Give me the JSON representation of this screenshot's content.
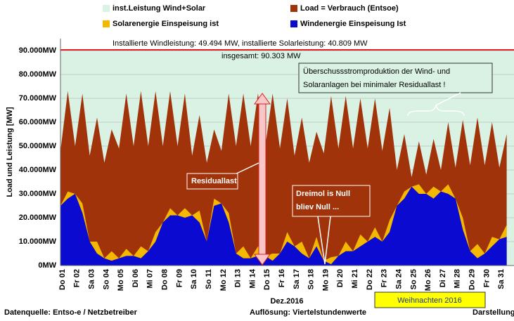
{
  "chart_data": {
    "type": "area",
    "y_label": "Load und Leistung [MW]",
    "x_label": "Dez.2016",
    "ylim": [
      0,
      95000
    ],
    "yticks": [
      {
        "value": 0,
        "label": "0MW"
      },
      {
        "value": 10000,
        "label": "10.000MW"
      },
      {
        "value": 20000,
        "label": "20.000MW"
      },
      {
        "value": 30000,
        "label": "30.000MW"
      },
      {
        "value": 40000,
        "label": "40.000MW"
      },
      {
        "value": 50000,
        "label": "50.000MW"
      },
      {
        "value": 60000,
        "label": "60.000MW"
      },
      {
        "value": 70000,
        "label": "70.000MW"
      },
      {
        "value": 80000,
        "label": "80.000MW"
      },
      {
        "value": 90000,
        "label": "90.000MW"
      }
    ],
    "categories": [
      "Do 01",
      null,
      "Fr 02",
      null,
      "Sa 03",
      null,
      "So 04",
      null,
      "Mo 05",
      null,
      "Di 06",
      null,
      "Mi 07",
      null,
      "Do 08",
      null,
      "Fr 09",
      null,
      "Sa 10",
      null,
      "So 11",
      null,
      "Mo 12",
      null,
      "Di 13",
      null,
      "Mi 14",
      null,
      "Do 15",
      null,
      "Fr 16",
      null,
      "Sa 17",
      null,
      "So 18",
      null,
      "Mo 19",
      null,
      "Di 20",
      null,
      "Mi 21",
      null,
      "Do 22",
      null,
      "Fr 23",
      null,
      "Sa 24",
      null,
      "So 25",
      null,
      "Mo 26",
      null,
      "Di 27",
      null,
      "Mi 28",
      null,
      "Do 29",
      null,
      "Fr 30",
      null,
      "Sa 31",
      null
    ],
    "capacity": {
      "name": "inst.Leistung Wind+Solar",
      "color": "#d9f2e4",
      "line_color": "#e02020",
      "value": 90303
    },
    "series": [
      {
        "name": "Load =  Verbrauch (Entsoe)",
        "color": "#a0330a",
        "values": [
          48000,
          73000,
          50000,
          72000,
          46000,
          62000,
          43000,
          57000,
          49000,
          72000,
          50000,
          73000,
          50000,
          73000,
          50000,
          73000,
          50000,
          72000,
          46000,
          63000,
          43000,
          57000,
          48000,
          72000,
          50000,
          72000,
          50000,
          72000,
          50000,
          72000,
          49000,
          70000,
          46000,
          62000,
          43000,
          56000,
          47000,
          71000,
          49000,
          71000,
          49000,
          70000,
          49000,
          70000,
          48000,
          66000,
          40000,
          55000,
          37000,
          52000,
          38000,
          53000,
          40000,
          60000,
          41000,
          61000,
          42000,
          62000,
          42000,
          60000,
          41000,
          55000
        ]
      },
      {
        "name": "Windenergie Einspeisung Ist",
        "color": "#0a0ad0",
        "values": [
          25000,
          28000,
          30000,
          22000,
          10000,
          5000,
          3000,
          2000,
          3000,
          4000,
          4000,
          3000,
          6000,
          10000,
          18000,
          21000,
          21000,
          20000,
          21000,
          18000,
          10000,
          25000,
          26000,
          18000,
          5000,
          3000,
          3000,
          4000,
          4000,
          2000,
          5000,
          10000,
          8000,
          5000,
          3000,
          8000,
          2000,
          500,
          4000,
          6000,
          6000,
          8000,
          10000,
          12000,
          10000,
          14000,
          25000,
          28000,
          33000,
          30000,
          30000,
          28000,
          31000,
          30000,
          28000,
          15000,
          6000,
          3000,
          5000,
          8000,
          11000,
          12000
        ]
      },
      {
        "name": "Solarenergie Einspeisung ist",
        "color": "#f5b800",
        "values": [
          0,
          3000,
          0,
          4000,
          0,
          5000,
          0,
          4000,
          0,
          3000,
          0,
          5000,
          0,
          4000,
          0,
          3000,
          0,
          4000,
          0,
          5000,
          0,
          3000,
          0,
          4000,
          0,
          5000,
          0,
          4000,
          0,
          3000,
          0,
          4000,
          0,
          5000,
          0,
          4000,
          0,
          3000,
          0,
          4000,
          0,
          5000,
          0,
          4000,
          0,
          5000,
          0,
          3000,
          0,
          4000,
          0,
          5000,
          0,
          4000,
          0,
          5000,
          0,
          6000,
          0,
          4000,
          0,
          5000
        ]
      }
    ],
    "annotations": {
      "installed": "Installierte Windleistung: 49.494 MW, installierte Solarleistung: 40.809 MW",
      "total": "insgesamt: 90.303 MW",
      "surplus_1": "Überschussstromproduktion der Wind- und",
      "surplus_2": "Solaranlagen bei minimaler Residuallast !",
      "residual": "Residuallast",
      "null_1": "Dreimol is Null",
      "null_2": "bliev Null ...",
      "christmas": "Weihnachten 2016"
    },
    "footer": {
      "source": "Datenquelle: Entso-e  / Netzbetreiber",
      "resolution": "Auflösung: Viertelstundenwerte",
      "author": "Darstellung:"
    }
  }
}
